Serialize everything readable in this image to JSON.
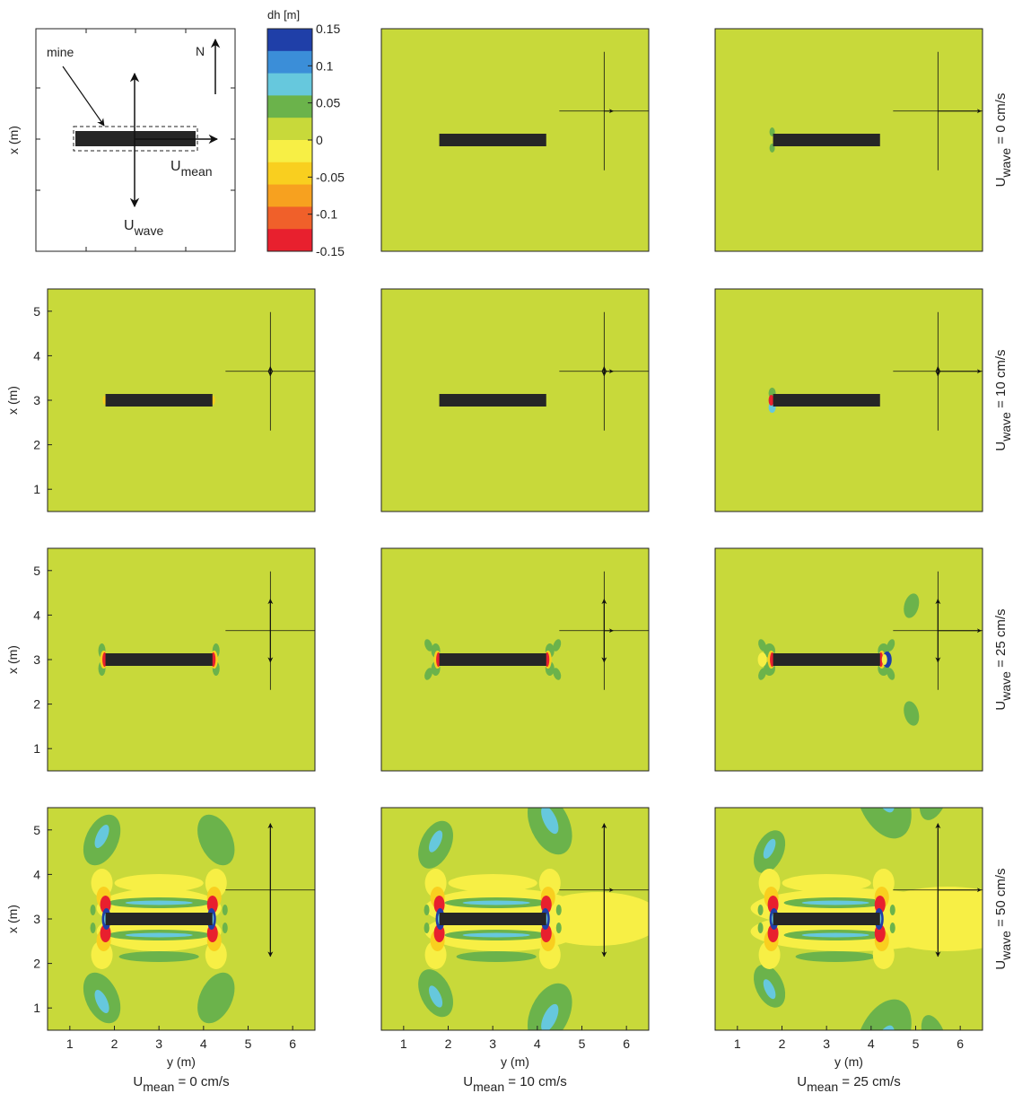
{
  "chart_data": {
    "type": "heatmap",
    "quantity": "dh [m]",
    "colorbar": {
      "label": "dh [m]",
      "ticks": [
        "0.15",
        "0.1",
        "0.05",
        "0",
        "-0.05",
        "-0.1",
        "-0.15"
      ],
      "colors": [
        "#1f3fa8",
        "#3b8ed8",
        "#66c8dd",
        "#6bb34b",
        "#c8d93a",
        "#f7ef45",
        "#f9cf1f",
        "#f7a11f",
        "#f0602a",
        "#e8202e"
      ]
    },
    "background_color": "#c8d93a",
    "mine_color": "#262626",
    "x_axis": {
      "label": "y (m)",
      "ticks": [
        "1",
        "2",
        "3",
        "4",
        "5",
        "6"
      ],
      "range": [
        0.5,
        6.5
      ]
    },
    "y_axis": {
      "label": "x (m)",
      "ticks": [
        "1",
        "2",
        "3",
        "4",
        "5"
      ],
      "range": [
        0.5,
        5.5
      ]
    },
    "mine": {
      "y_range": [
        1.8,
        4.2
      ],
      "x_center": 3.0
    },
    "columns": [
      {
        "label_main": "U",
        "label_sub": "mean",
        "label_value": " = 0 cm/s",
        "u_mean": 0
      },
      {
        "label_main": "U",
        "label_sub": "mean",
        "label_value": " = 10 cm/s",
        "u_mean": 10
      },
      {
        "label_main": "U",
        "label_sub": "mean",
        "label_value": " = 25 cm/s",
        "u_mean": 25
      }
    ],
    "rows": [
      {
        "label_main": "U",
        "label_sub": "wave",
        "label_value": " = 0 cm/s",
        "u_wave": 0
      },
      {
        "label_main": "U",
        "label_sub": "wave",
        "label_value": " = 10 cm/s",
        "u_wave": 10
      },
      {
        "label_main": "U",
        "label_sub": "wave",
        "label_value": " = 25 cm/s",
        "u_wave": 25
      },
      {
        "label_main": "U",
        "label_sub": "wave",
        "label_value": " = 50 cm/s",
        "u_wave": 50
      }
    ],
    "grid": false,
    "legend_placement": "top-left"
  },
  "schematic": {
    "mine_label": "mine",
    "north_label": "N",
    "u_mean_main": "U",
    "u_mean_sub": "mean",
    "u_wave_main": "U",
    "u_wave_sub": "wave",
    "y_axis_label": "x (m)"
  }
}
